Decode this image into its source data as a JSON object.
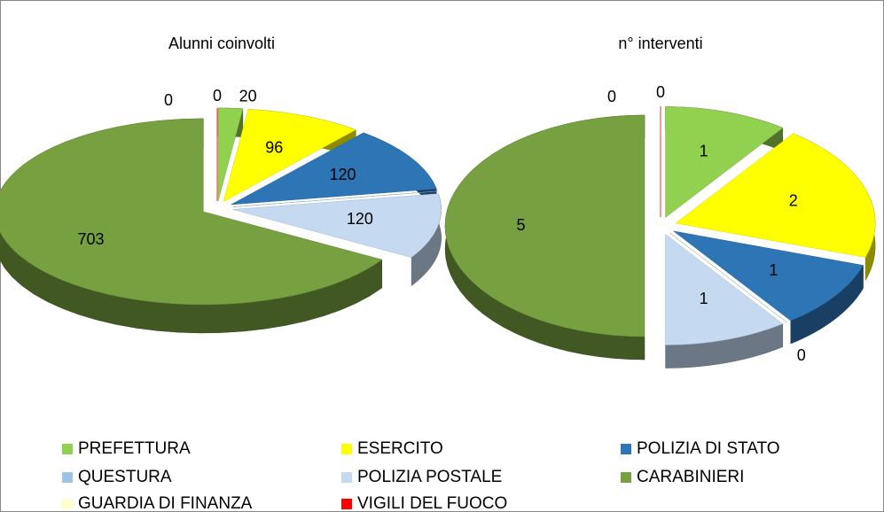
{
  "chart_data": [
    {
      "type": "pie",
      "title": "Alunni coinvolti",
      "categories": [
        "PREFETTURA",
        "ESERCITO",
        "POLIZIA DI STATO",
        "QUESTURA",
        "POLIZIA POSTALE",
        "CARABINIERI",
        "GUARDIA DI FINANZA",
        "VIGILI DEL FUOCO"
      ],
      "values": [
        20,
        96,
        120,
        0,
        120,
        703,
        0,
        0
      ],
      "colors": [
        "#92d050",
        "#ffff00",
        "#2e75b6",
        "#9dc3e6",
        "#c5d9f1",
        "#77a040",
        "#ffffcc",
        "#ff0000"
      ]
    },
    {
      "type": "pie",
      "title": "n° interventi",
      "categories": [
        "PREFETTURA",
        "ESERCITO",
        "POLIZIA DI STATO",
        "QUESTURA",
        "POLIZIA POSTALE",
        "CARABINIERI",
        "GUARDIA DI FINANZA",
        "VIGILI DEL FUOCO"
      ],
      "values": [
        1,
        2,
        1,
        0,
        1,
        5,
        0,
        0
      ],
      "colors": [
        "#92d050",
        "#ffff00",
        "#2e75b6",
        "#9dc3e6",
        "#c5d9f1",
        "#77a040",
        "#ffffcc",
        "#ff0000"
      ]
    }
  ]
}
